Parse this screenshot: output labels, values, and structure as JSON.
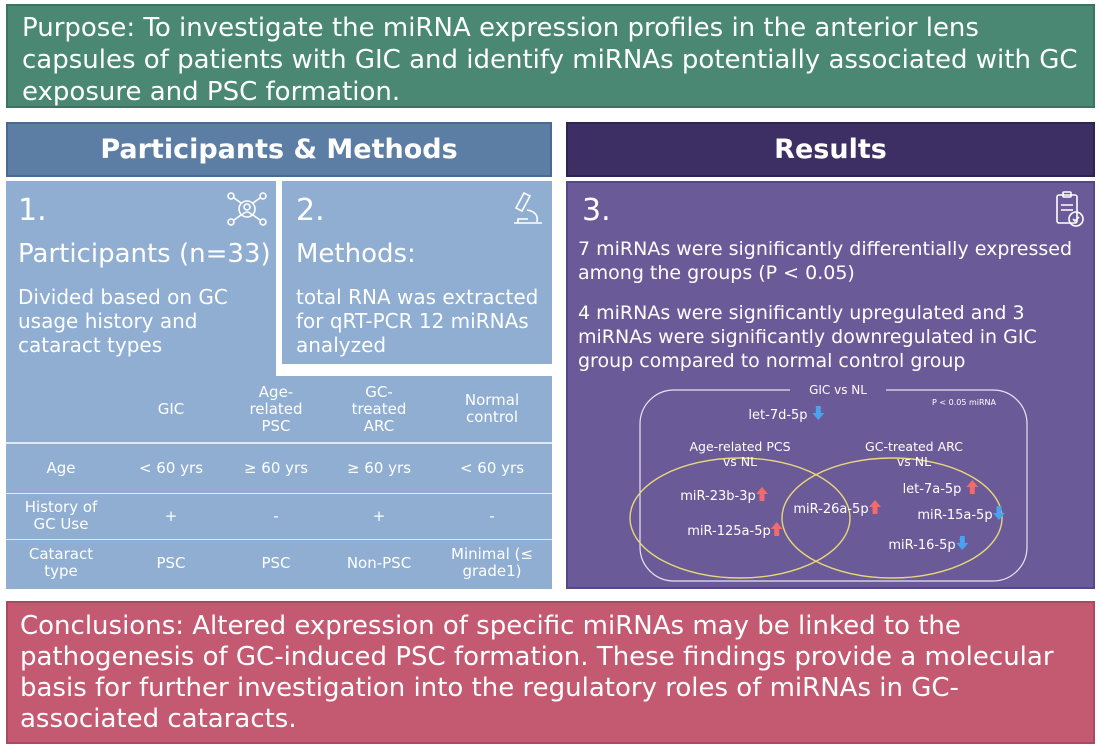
{
  "purpose": {
    "text": "Purpose: To investigate the miRNA expression profiles in the anterior lens capsules of patients with GIC and identify miRNAs potentially associated with GC exposure and PSC formation."
  },
  "participants_methods": {
    "header": "Participants & Methods",
    "panel1": {
      "number": "1.",
      "title": "Participants (n=33)",
      "body": "Divided based on GC usage history and cataract types"
    },
    "panel2": {
      "number": "2.",
      "title": "Methods:",
      "body": "total RNA was extracted for qRT-PCR 12 miRNAs analyzed"
    },
    "table": {
      "headers": [
        "",
        "GIC",
        "Age-related PSC",
        "GC-treated ARC",
        "Normal control"
      ],
      "rows": [
        {
          "label": "Age",
          "values": [
            "< 60 yrs",
            "≥ 60 yrs",
            "≥ 60 yrs",
            "< 60 yrs"
          ]
        },
        {
          "label": "History of GC Use",
          "values": [
            "+",
            "-",
            "+",
            "-"
          ]
        },
        {
          "label": "Cataract type",
          "values": [
            "PSC",
            "PSC",
            "Non-PSC",
            "Minimal (≤ grade1)"
          ]
        }
      ]
    }
  },
  "results": {
    "header": "Results",
    "number": "3.",
    "finding1": "7 miRNAs were significantly differentially expressed among the groups (P < 0.05)",
    "finding2": "4 miRNAs were significantly upregulated and 3 miRNAs were significantly downregulated in GIC group compared to normal control group",
    "venn": {
      "outer_label": "GIC vs NL",
      "pnote": "P < 0.05 miRNA",
      "left_label_line1": "Age-related PCS",
      "left_label_line2": "vs NL",
      "right_label_line1": "GC-treated ARC",
      "right_label_line2": "vs NL",
      "items": [
        {
          "name": "let-7d-5p",
          "direction": "down"
        },
        {
          "name": "miR-23b-3p",
          "direction": "up"
        },
        {
          "name": "miR-125a-5p",
          "direction": "up"
        },
        {
          "name": "miR-26a-5p",
          "direction": "up"
        },
        {
          "name": "let-7a-5p",
          "direction": "up"
        },
        {
          "name": "miR-15a-5p",
          "direction": "down"
        },
        {
          "name": "miR-16-5p",
          "direction": "down"
        }
      ],
      "colors": {
        "up": "#f26b6b",
        "down": "#4aa3f0",
        "circle": "#e8d77a"
      }
    }
  },
  "conclusions": {
    "text": "Conclusions: Altered expression of specific miRNAs may be linked to the pathogenesis of GC-induced PSC formation. These findings provide a molecular basis for further investigation into the regulatory roles of miRNAs in GC-associated cataracts."
  },
  "icons": [
    "people-network-icon",
    "microscope-icon",
    "clipboard-icon"
  ],
  "colors": {
    "purpose_bg": "#4a8873",
    "methods_bg": "#5c7ea5",
    "panel_bg": "#8faed1",
    "results_bg": "#6a5a98",
    "results_header_bg": "#3d2e63",
    "conclusions_bg": "#c45a72"
  }
}
